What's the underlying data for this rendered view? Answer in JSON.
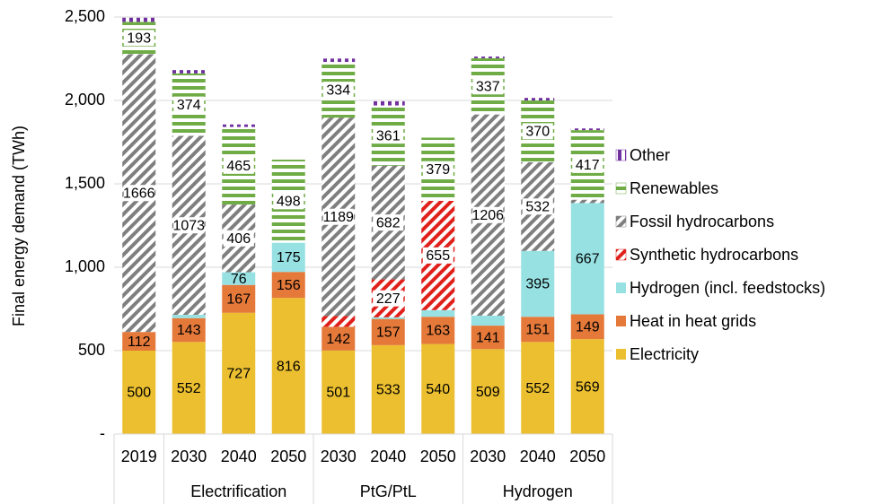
{
  "chart_data": {
    "type": "stacked-bar",
    "y_label": "Final energy demand (TWh)",
    "categories": [
      "2019",
      "2030",
      "2040",
      "2050",
      "2030",
      "2040",
      "2050",
      "2030",
      "2040",
      "2050"
    ],
    "groups": [
      null,
      "Electrification",
      "Electrification",
      "Electrification",
      "PtG/PtL",
      "PtG/PtL",
      "PtG/PtL",
      "Hydrogen",
      "Hydrogen",
      "Hydrogen"
    ],
    "ylim": [
      0,
      2500
    ],
    "yticks": [
      {
        "value": 0,
        "label": "-"
      },
      500,
      {
        "value": 1000,
        "label": "1,000"
      },
      {
        "value": 1500,
        "label": "1,500"
      },
      {
        "value": 2000,
        "label": "2,000"
      },
      {
        "value": 2500,
        "label": "2,500"
      }
    ],
    "grid": true,
    "legend": "right",
    "series": [
      {
        "name": "Electricity",
        "color": "#ebbf2f",
        "pattern": "solid",
        "values": [
          500,
          552,
          727,
          816,
          501,
          533,
          540,
          509,
          552,
          569
        ]
      },
      {
        "name": "Heat in heat grids",
        "color": "#e5793a",
        "pattern": "solid",
        "values": [
          112,
          143,
          167,
          156,
          142,
          157,
          163,
          141,
          151,
          149
        ]
      },
      {
        "name": "Hydrogen (incl. feedstocks)",
        "color": "#97e1e3",
        "pattern": "solid",
        "values": [
          0,
          20,
          76,
          175,
          0,
          10,
          40,
          60,
          395,
          667
        ]
      },
      {
        "name": "Synthetic hydrocarbons",
        "color": "#e0201b",
        "pattern": "diagonal",
        "values": [
          0,
          0,
          0,
          0,
          65,
          227,
          655,
          0,
          0,
          0
        ]
      },
      {
        "name": "Fossil hydrocarbons",
        "color": "#7f7f7f",
        "pattern": "diagonal",
        "values": [
          1666,
          1073,
          406,
          0,
          1189,
          682,
          0,
          1206,
          532,
          20
        ]
      },
      {
        "name": "Renewables",
        "color": "#6fac46",
        "pattern": "horizontal",
        "values": [
          193,
          374,
          465,
          498,
          334,
          361,
          379,
          337,
          370,
          417
        ]
      },
      {
        "name": "Other",
        "color": "#7030a0",
        "pattern": "vertical",
        "values": [
          25,
          20,
          15,
          0,
          20,
          25,
          0,
          10,
          15,
          10
        ]
      }
    ]
  }
}
